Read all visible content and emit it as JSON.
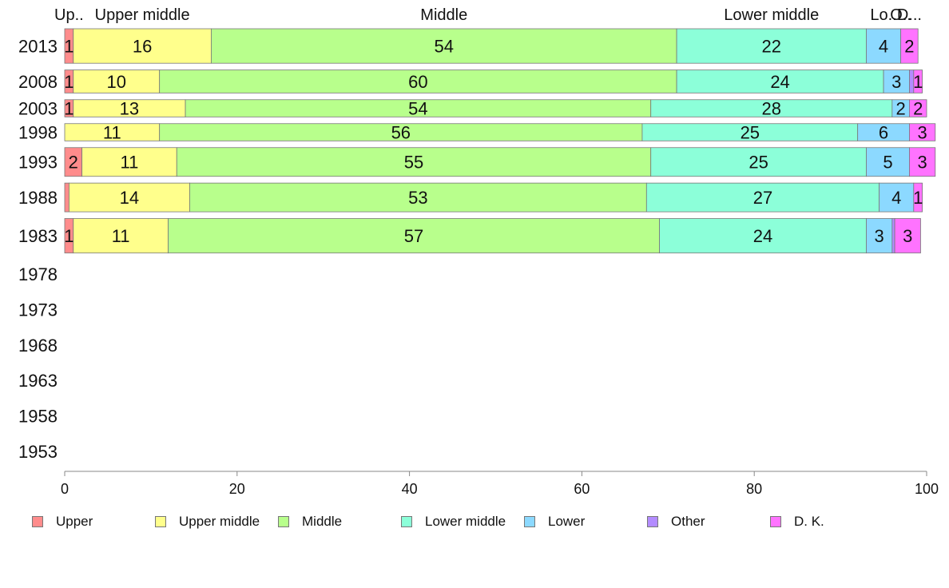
{
  "chart_data": {
    "type": "bar",
    "orientation": "horizontal",
    "stacked": true,
    "categories": [
      "2013",
      "2008",
      "2003",
      "1998",
      "1993",
      "1988",
      "1983",
      "1978",
      "1973",
      "1968",
      "1963",
      "1958",
      "1953"
    ],
    "series": [
      {
        "name": "Upper",
        "color": "#ff8c8c",
        "values": [
          1,
          1,
          1,
          0,
          2,
          0.5,
          1,
          null,
          null,
          null,
          null,
          null,
          null
        ],
        "labels": [
          "1",
          "1",
          "1",
          "",
          "2",
          "",
          "1",
          "",
          "",
          "",
          "",
          "",
          ""
        ]
      },
      {
        "name": "Upper middle",
        "color": "#ffff8c",
        "values": [
          16,
          10,
          13,
          11,
          11,
          14,
          11,
          null,
          null,
          null,
          null,
          null,
          null
        ],
        "labels": [
          "16",
          "10",
          "13",
          "11",
          "11",
          "14",
          "11",
          "",
          "",
          "",
          "",
          "",
          ""
        ]
      },
      {
        "name": "Middle",
        "color": "#b8ff8c",
        "values": [
          54,
          60,
          54,
          56,
          55,
          53,
          57,
          null,
          null,
          null,
          null,
          null,
          null
        ],
        "labels": [
          "54",
          "60",
          "54",
          "56",
          "55",
          "53",
          "57",
          "",
          "",
          "",
          "",
          "",
          ""
        ]
      },
      {
        "name": "Lower middle",
        "color": "#8cffd9",
        "values": [
          22,
          24,
          28,
          25,
          25,
          27,
          24,
          null,
          null,
          null,
          null,
          null,
          null
        ],
        "labels": [
          "22",
          "24",
          "28",
          "25",
          "25",
          "27",
          "24",
          "",
          "",
          "",
          "",
          "",
          ""
        ]
      },
      {
        "name": "Lower",
        "color": "#8cd9ff",
        "values": [
          4,
          3,
          2,
          6,
          5,
          4,
          3,
          null,
          null,
          null,
          null,
          null,
          null
        ],
        "labels": [
          "4",
          "3",
          "2",
          "6",
          "5",
          "4",
          "3",
          "",
          "",
          "",
          "",
          "",
          ""
        ]
      },
      {
        "name": "Other",
        "color": "#b38cff",
        "values": [
          0,
          0.5,
          0,
          0,
          0,
          0,
          0.3,
          null,
          null,
          null,
          null,
          null,
          null
        ],
        "labels": [
          "",
          "",
          "",
          "",
          "",
          "",
          "",
          "",
          "",
          "",
          "",
          "",
          ""
        ]
      },
      {
        "name": "D. K.",
        "color": "#ff73ff",
        "values": [
          2,
          1,
          2,
          3,
          3,
          1,
          3,
          null,
          null,
          null,
          null,
          null,
          null
        ],
        "labels": [
          "2",
          "1",
          "2",
          "3",
          "3",
          "1",
          "3",
          "",
          "",
          "",
          "",
          "",
          ""
        ]
      }
    ],
    "bar_weight": [
      6,
      4,
      3,
      3,
      5,
      5,
      6,
      0,
      0,
      0,
      0,
      0,
      0
    ],
    "top_labels": [
      "Up..",
      "Upper middle",
      "Middle",
      "Lower middle",
      "Lo..",
      "O..",
      "D..."
    ],
    "xlim": [
      0,
      100
    ],
    "xticks": [
      "0",
      "20",
      "40",
      "60",
      "80",
      "100"
    ],
    "xtick_values": [
      0,
      20,
      40,
      60,
      80,
      100
    ],
    "grid": false,
    "legend_position": "bottom",
    "title": "",
    "xlabel": "",
    "ylabel": ""
  }
}
